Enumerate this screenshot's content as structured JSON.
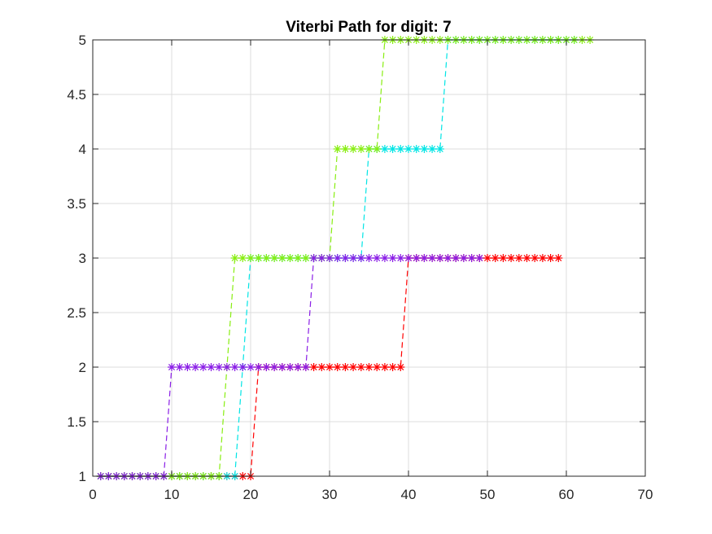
{
  "chart_data": {
    "type": "line",
    "title": "Viterbi Path for digit: 7",
    "xlabel": "",
    "ylabel": "",
    "xlim": [
      0,
      70
    ],
    "ylim": [
      1,
      5
    ],
    "xticks": [
      0,
      10,
      20,
      30,
      40,
      50,
      60,
      70
    ],
    "yticks": [
      1,
      1.5,
      2,
      2.5,
      3,
      3.5,
      4,
      4.5,
      5
    ],
    "grid": true,
    "marker": "*",
    "line_style": "dashed",
    "series": [
      {
        "color": "#ff0000",
        "x": [
          1,
          2,
          3,
          4,
          5,
          6,
          7,
          8,
          9,
          10,
          11,
          12,
          13,
          14,
          15,
          16,
          17,
          18,
          19,
          20,
          21,
          22,
          23,
          24,
          25,
          26,
          27,
          28,
          29,
          30,
          31,
          32,
          33,
          34,
          35,
          36,
          37,
          38,
          39,
          40,
          41,
          42,
          43,
          44,
          45,
          46,
          47,
          48,
          49,
          50,
          51,
          52,
          53,
          54,
          55,
          56,
          57,
          58,
          59
        ],
        "y": [
          1,
          1,
          1,
          1,
          1,
          1,
          1,
          1,
          1,
          1,
          1,
          1,
          1,
          1,
          1,
          1,
          1,
          1,
          1,
          1,
          2,
          2,
          2,
          2,
          2,
          2,
          2,
          2,
          2,
          2,
          2,
          2,
          2,
          2,
          2,
          2,
          2,
          2,
          2,
          3,
          3,
          3,
          3,
          3,
          3,
          3,
          3,
          3,
          3,
          3,
          3,
          3,
          3,
          3,
          3,
          3,
          3,
          3,
          3
        ]
      },
      {
        "color": "#00e5e5",
        "x": [
          1,
          2,
          3,
          4,
          5,
          6,
          7,
          8,
          9,
          10,
          11,
          12,
          13,
          14,
          15,
          16,
          17,
          18,
          19,
          20,
          21,
          22,
          23,
          24,
          25,
          26,
          27,
          28,
          29,
          30,
          31,
          32,
          33,
          34,
          35,
          36,
          37,
          38,
          39,
          40,
          41,
          42,
          43,
          44,
          45,
          46,
          47,
          48,
          49,
          50,
          51,
          52,
          53,
          54,
          55,
          56,
          57,
          58,
          59,
          60,
          61
        ],
        "y": [
          1,
          1,
          1,
          1,
          1,
          1,
          1,
          1,
          1,
          1,
          1,
          1,
          1,
          1,
          1,
          1,
          1,
          1,
          2,
          3,
          3,
          3,
          3,
          3,
          3,
          3,
          3,
          3,
          3,
          3,
          3,
          3,
          3,
          3,
          4,
          4,
          4,
          4,
          4,
          4,
          4,
          4,
          4,
          4,
          5,
          5,
          5,
          5,
          5,
          5,
          5,
          5,
          5,
          5,
          5,
          5,
          5,
          5,
          5,
          5,
          5
        ]
      },
      {
        "color": "#88ee11",
        "x": [
          1,
          2,
          3,
          4,
          5,
          6,
          7,
          8,
          9,
          10,
          11,
          12,
          13,
          14,
          15,
          16,
          17,
          18,
          19,
          20,
          21,
          22,
          23,
          24,
          25,
          26,
          27,
          28,
          29,
          30,
          31,
          32,
          33,
          34,
          35,
          36,
          37,
          38,
          39,
          40,
          41,
          42,
          43,
          44,
          45,
          46,
          47,
          48,
          49,
          50,
          51,
          52,
          53,
          54,
          55,
          56,
          57,
          58,
          59,
          60,
          61,
          62,
          63
        ],
        "y": [
          1,
          1,
          1,
          1,
          1,
          1,
          1,
          1,
          1,
          1,
          1,
          1,
          1,
          1,
          1,
          1,
          2,
          3,
          3,
          3,
          3,
          3,
          3,
          3,
          3,
          3,
          3,
          3,
          3,
          3,
          4,
          4,
          4,
          4,
          4,
          4,
          5,
          5,
          5,
          5,
          5,
          5,
          5,
          5,
          5,
          5,
          5,
          5,
          5,
          5,
          5,
          5,
          5,
          5,
          5,
          5,
          5,
          5,
          5,
          5,
          5,
          5,
          5
        ]
      },
      {
        "color": "#8a1ee6",
        "x": [
          1,
          2,
          3,
          4,
          5,
          6,
          7,
          8,
          9,
          10,
          11,
          12,
          13,
          14,
          15,
          16,
          17,
          18,
          19,
          20,
          21,
          22,
          23,
          24,
          25,
          26,
          27,
          28,
          29,
          30,
          31,
          32,
          33,
          34,
          35,
          36,
          37,
          38,
          39,
          40,
          41,
          42,
          43,
          44,
          45,
          46,
          47,
          48,
          49
        ],
        "y": [
          1,
          1,
          1,
          1,
          1,
          1,
          1,
          1,
          1,
          2,
          2,
          2,
          2,
          2,
          2,
          2,
          2,
          2,
          2,
          2,
          2,
          2,
          2,
          2,
          2,
          2,
          2,
          3,
          3,
          3,
          3,
          3,
          3,
          3,
          3,
          3,
          3,
          3,
          3,
          3,
          3,
          3,
          3,
          3,
          3,
          3,
          3,
          3,
          3
        ]
      }
    ]
  }
}
